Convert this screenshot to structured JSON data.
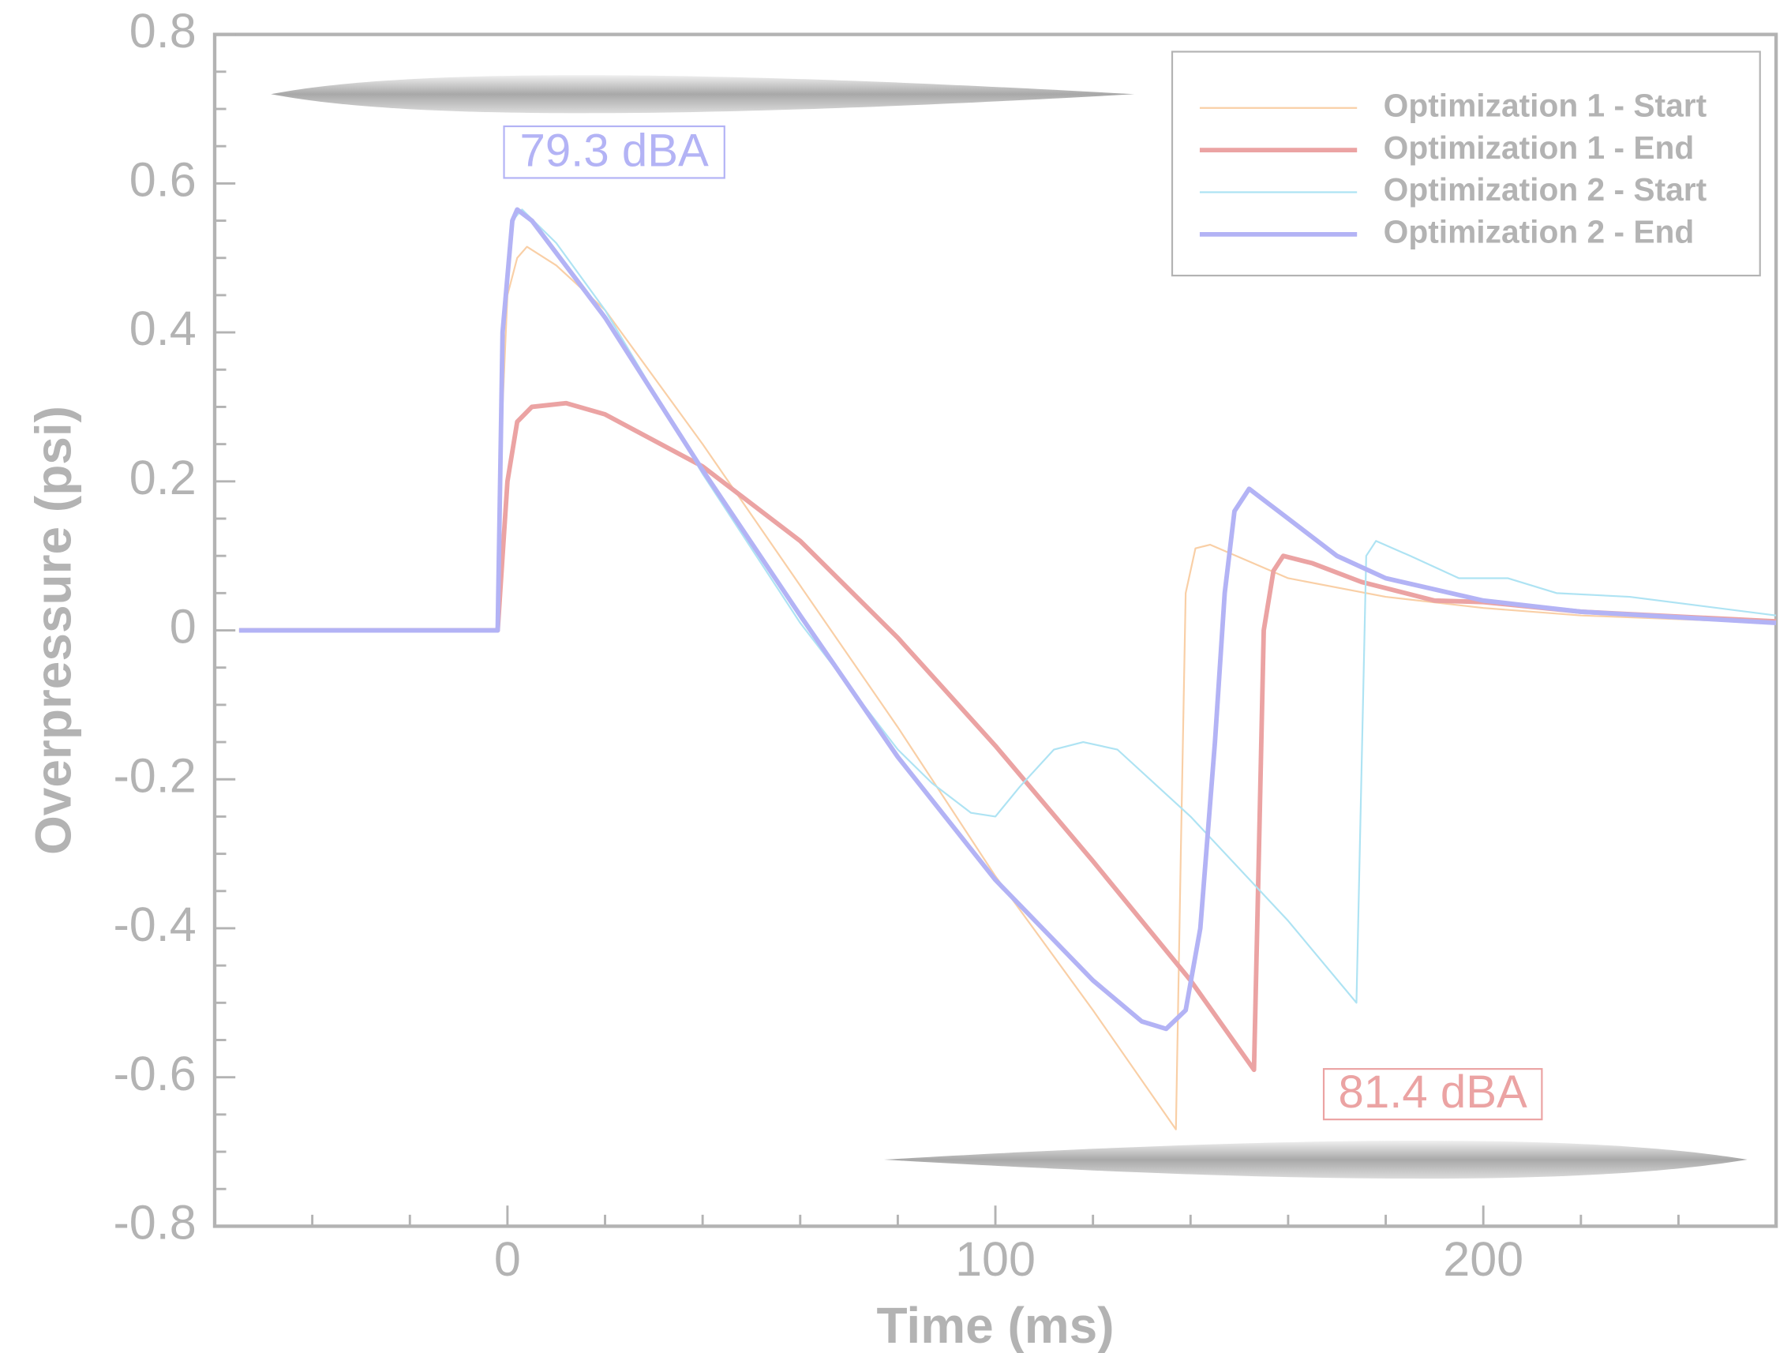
{
  "chart_data": {
    "type": "line",
    "x_label": "Time (ms)",
    "y_label": "Overpressure (psi)",
    "xlim": [
      -60,
      260
    ],
    "ylim": [
      -0.8,
      0.8
    ],
    "xticks": [
      0,
      100,
      200
    ],
    "xminorticks": [
      -40,
      -20,
      20,
      40,
      60,
      80,
      120,
      140,
      160,
      180,
      220,
      240
    ],
    "yticks": [
      -0.8,
      -0.6,
      -0.4,
      -0.2,
      0,
      0.2,
      0.4,
      0.6,
      0.8
    ],
    "yminorticks": [
      -0.75,
      -0.7,
      -0.65,
      -0.55,
      -0.5,
      -0.45,
      -0.35,
      -0.3,
      -0.25,
      -0.15,
      -0.1,
      -0.05,
      0.05,
      0.1,
      0.15,
      0.25,
      0.3,
      0.35,
      0.45,
      0.5,
      0.55,
      0.65,
      0.7,
      0.75
    ],
    "legend": "upper right",
    "series": [
      {
        "name": "Optimization 1 - Start",
        "color": "#f9cfa6",
        "line_width": 1.5,
        "x": [
          -55,
          -2,
          -1,
          0,
          2,
          4,
          10,
          20,
          40,
          60,
          80,
          100,
          120,
          137,
          138,
          139,
          141,
          144,
          160,
          180,
          200,
          220,
          260
        ],
        "values": [
          0,
          0,
          0.3,
          0.45,
          0.5,
          0.515,
          0.49,
          0.43,
          0.25,
          0.06,
          -0.13,
          -0.33,
          -0.51,
          -0.67,
          -0.3,
          0.05,
          0.11,
          0.115,
          0.07,
          0.045,
          0.03,
          0.02,
          0.01
        ]
      },
      {
        "name": "Optimization 1 - End",
        "color": "#eba3a3",
        "line_width": 4,
        "x": [
          -55,
          -2,
          0,
          2,
          5,
          12,
          20,
          40,
          60,
          80,
          100,
          120,
          140,
          153,
          154,
          155,
          157,
          159,
          165,
          175,
          190,
          200,
          220,
          260
        ],
        "values": [
          0,
          0,
          0.2,
          0.28,
          0.3,
          0.305,
          0.29,
          0.22,
          0.12,
          -0.01,
          -0.155,
          -0.31,
          -0.47,
          -0.59,
          -0.3,
          0,
          0.08,
          0.1,
          0.09,
          0.065,
          0.04,
          0.038,
          0.025,
          0.012
        ]
      },
      {
        "name": "Optimization 2 - Start",
        "color": "#aee3f3",
        "line_width": 1.5,
        "x": [
          -55,
          -2,
          -1,
          1,
          3,
          10,
          20,
          40,
          60,
          80,
          87,
          95,
          100,
          105,
          112,
          118,
          125,
          140,
          160,
          174,
          175,
          176,
          178,
          185,
          195,
          205,
          215,
          230,
          260
        ],
        "values": [
          0,
          0,
          0.4,
          0.55,
          0.565,
          0.52,
          0.43,
          0.21,
          0.01,
          -0.16,
          -0.205,
          -0.245,
          -0.25,
          -0.21,
          -0.16,
          -0.15,
          -0.16,
          -0.25,
          -0.39,
          -0.5,
          -0.2,
          0.1,
          0.12,
          0.1,
          0.07,
          0.07,
          0.05,
          0.045,
          0.02
        ]
      },
      {
        "name": "Optimization 2 - End",
        "color": "#b3b3f5",
        "line_width": 4,
        "x": [
          -55,
          -2,
          -1,
          1,
          2,
          5,
          20,
          40,
          60,
          80,
          100,
          120,
          130,
          135,
          139,
          142,
          145,
          147,
          149,
          152,
          160,
          170,
          180,
          200,
          220,
          260
        ],
        "values": [
          0,
          0,
          0.4,
          0.55,
          0.565,
          0.55,
          0.42,
          0.215,
          0.02,
          -0.17,
          -0.335,
          -0.47,
          -0.525,
          -0.535,
          -0.51,
          -0.4,
          -0.15,
          0.05,
          0.16,
          0.19,
          0.15,
          0.1,
          0.07,
          0.04,
          0.025,
          0.01
        ]
      }
    ],
    "annotations": [
      {
        "text": "79.3 dBA",
        "color": "#b3b3f5"
      },
      {
        "text": "81.4 dBA",
        "color": "#eba3a3"
      }
    ]
  }
}
